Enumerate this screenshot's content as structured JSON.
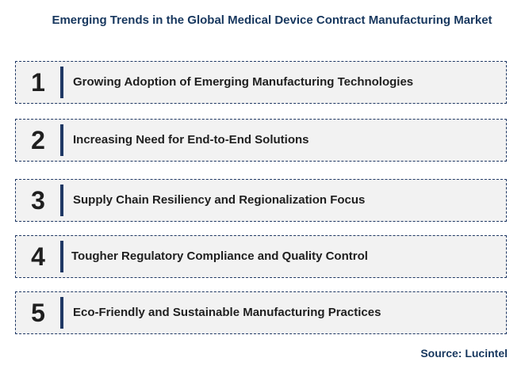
{
  "title": "Emerging Trends in the Global Medical Device Contract Manufacturing Market",
  "trends": [
    {
      "number": "1",
      "label": "Growing Adoption of Emerging Manufacturing Technologies"
    },
    {
      "number": "2",
      "label": "Increasing Need for End-to-End Solutions"
    },
    {
      "number": "3",
      "label": "Supply Chain Resiliency and Regionalization Focus"
    },
    {
      "number": "4",
      "label": "Tougher Regulatory Compliance and Quality Control"
    },
    {
      "number": "5",
      "label": "Eco-Friendly and Sustainable Manufacturing Practices"
    }
  ],
  "source": "Source: Lucintel",
  "colors": {
    "title": "#17375e",
    "accent_bar": "#1f3864",
    "box_fill": "#f2f2f2",
    "text": "#1f1f1f"
  }
}
